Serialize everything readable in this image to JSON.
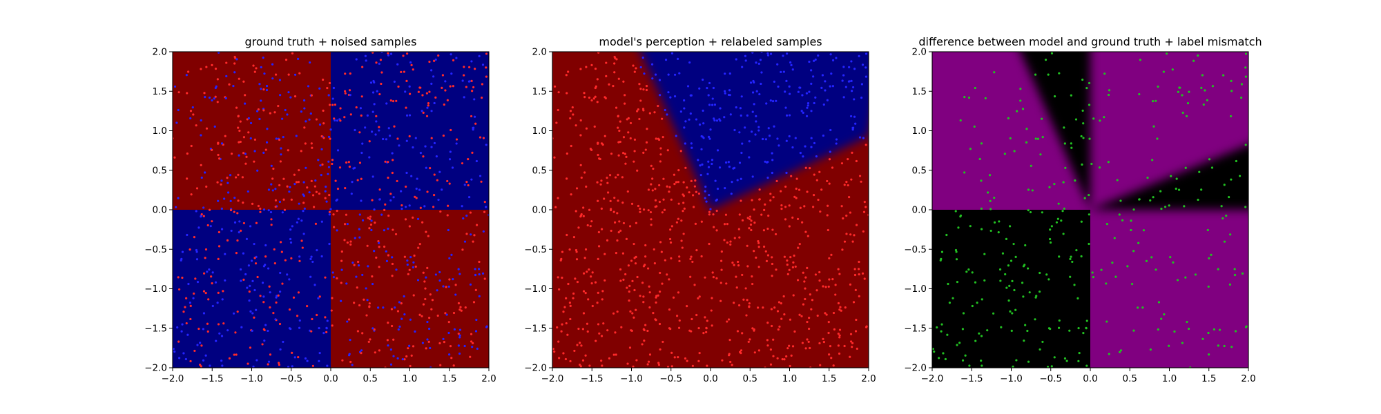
{
  "chart_data": [
    {
      "type": "heatmap",
      "title": "ground truth + noised samples",
      "xlim": [
        -2.0,
        2.0
      ],
      "ylim": [
        -2.0,
        2.0
      ],
      "x_ticks": [
        "−2.0",
        "−1.5",
        "−1.0",
        "−0.5",
        "0.0",
        "0.5",
        "1.0",
        "1.5",
        "2.0"
      ],
      "y_ticks": [
        "−2.0",
        "−1.5",
        "−1.0",
        "−0.5",
        "0.0",
        "0.5",
        "1.0",
        "1.5",
        "2.0"
      ],
      "regions": [
        {
          "x": [
            -2.0,
            0.0
          ],
          "y": [
            0.0,
            2.0
          ],
          "color": "#800000"
        },
        {
          "x": [
            0.0,
            2.0
          ],
          "y": [
            0.0,
            2.0
          ],
          "color": "#000080"
        },
        {
          "x": [
            -2.0,
            0.0
          ],
          "y": [
            -2.0,
            0.0
          ],
          "color": "#000080"
        },
        {
          "x": [
            0.0,
            2.0
          ],
          "y": [
            -2.0,
            0.0
          ],
          "color": "#800000"
        }
      ],
      "scatter": {
        "count_per_quadrant": 250,
        "colors": {
          "label_0": "#ff2a2a",
          "label_1": "#2424ff"
        }
      },
      "grid": false,
      "legend": "none"
    },
    {
      "type": "heatmap",
      "title": "model's perception + relabeled samples",
      "xlim": [
        -2.0,
        2.0
      ],
      "ylim": [
        -2.0,
        2.0
      ],
      "x_ticks": [
        "−2.0",
        "−1.5",
        "−1.0",
        "−0.5",
        "0.0",
        "0.5",
        "1.0",
        "1.5",
        "2.0"
      ],
      "y_ticks": [
        "−2.0",
        "−1.5",
        "−1.0",
        "−0.5",
        "0.0",
        "0.5",
        "1.0",
        "1.5",
        "2.0"
      ],
      "background_color": "#800000",
      "wedge": {
        "color": "#000080",
        "vertex": [
          0.0,
          0.0
        ],
        "ray_left_end": [
          -1.0,
          2.0
        ],
        "ray_right_end": [
          2.0,
          0.93
        ]
      },
      "scatter": {
        "colors": {
          "label_0": "#ff2a2a",
          "label_1": "#2424ff"
        }
      },
      "grid": false,
      "legend": "none"
    },
    {
      "type": "heatmap",
      "title": "difference between model and ground truth + label mismatch",
      "xlim": [
        -2.0,
        2.0
      ],
      "ylim": [
        -2.0,
        2.0
      ],
      "x_ticks": [
        "−2.0",
        "−1.5",
        "−1.0",
        "−0.5",
        "0.0",
        "0.5",
        "1.0",
        "1.5",
        "2.0"
      ],
      "y_ticks": [
        "−2.0",
        "−1.5",
        "−1.0",
        "−0.5",
        "0.0",
        "0.5",
        "1.0",
        "1.5",
        "2.0"
      ],
      "colors": {
        "mismatch": "#800080",
        "match": "#000000",
        "points": "#22c022"
      },
      "grid": false,
      "legend": "none"
    }
  ]
}
